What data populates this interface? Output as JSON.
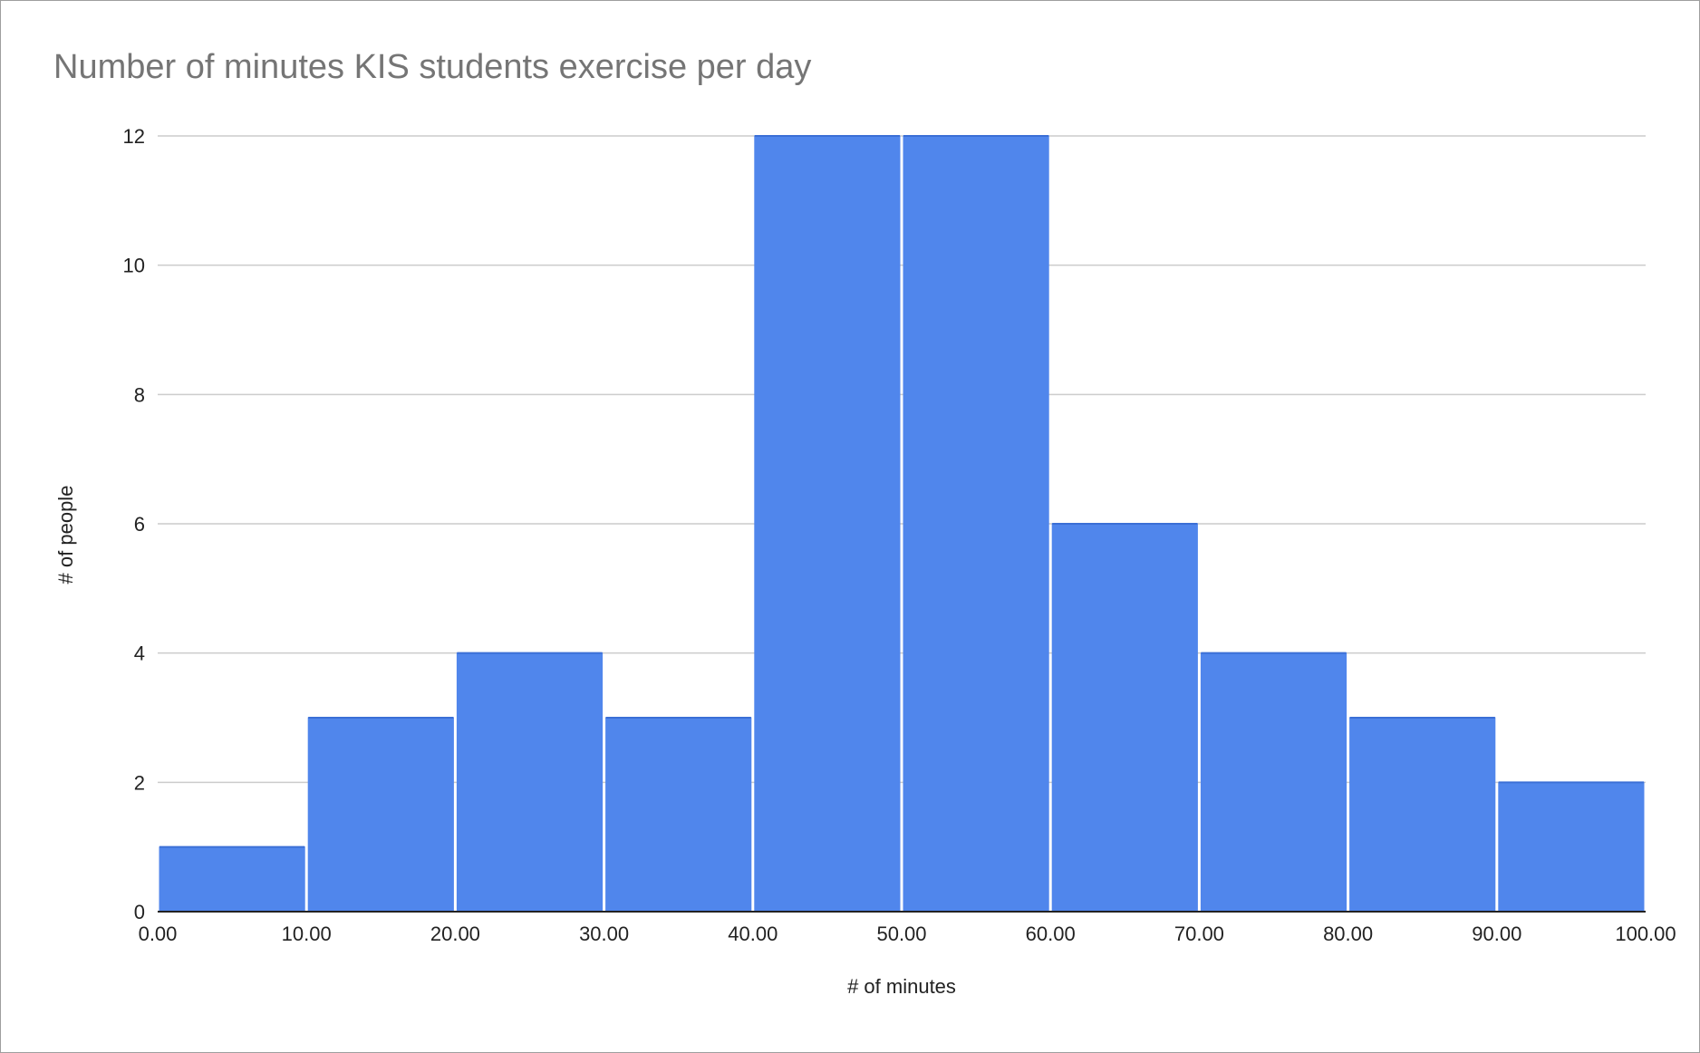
{
  "chart_data": {
    "type": "bar",
    "title": "Number of minutes KIS students exercise per day",
    "xlabel": "# of minutes",
    "ylabel": "# of people",
    "x_ticks": [
      "0.00",
      "10.00",
      "20.00",
      "30.00",
      "40.00",
      "50.00",
      "60.00",
      "70.00",
      "80.00",
      "90.00",
      "100.00"
    ],
    "y_ticks": [
      "0",
      "2",
      "4",
      "6",
      "8",
      "10",
      "12"
    ],
    "bins": [
      {
        "from": 0,
        "to": 10,
        "value": 1
      },
      {
        "from": 10,
        "to": 20,
        "value": 3
      },
      {
        "from": 20,
        "to": 30,
        "value": 4
      },
      {
        "from": 30,
        "to": 40,
        "value": 3
      },
      {
        "from": 40,
        "to": 50,
        "value": 12
      },
      {
        "from": 50,
        "to": 60,
        "value": 12
      },
      {
        "from": 60,
        "to": 70,
        "value": 6
      },
      {
        "from": 70,
        "to": 80,
        "value": 4
      },
      {
        "from": 80,
        "to": 90,
        "value": 3
      },
      {
        "from": 90,
        "to": 100,
        "value": 2
      }
    ],
    "xlim": [
      0,
      100
    ],
    "ylim": [
      0,
      12
    ],
    "grid": true,
    "bar_color": "#5086ec",
    "grid_color": "#cccccc",
    "axis_color": "#222222"
  }
}
